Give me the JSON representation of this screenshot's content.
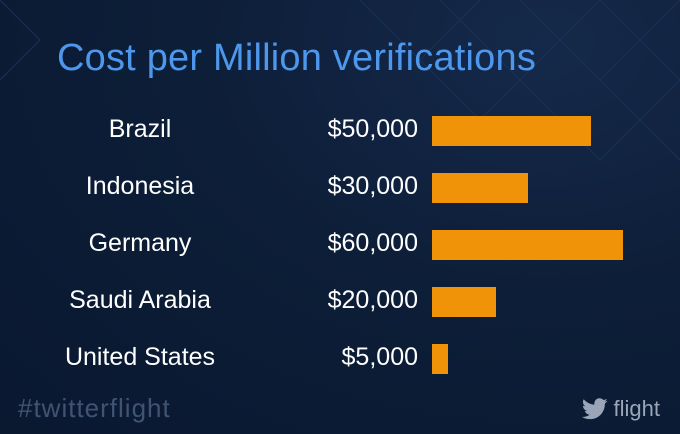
{
  "slide": {
    "hashtag": "#twitterflight",
    "brand": {
      "icon": "twitter-bird-icon",
      "name": "flight"
    }
  },
  "colors": {
    "background": "#0d1e38",
    "title": "#4d97ec",
    "bar": "#f09308",
    "text": "#ffffff"
  },
  "chart_data": {
    "type": "bar",
    "orientation": "horizontal",
    "title": "Cost per Million verifications",
    "categories": [
      "Brazil",
      "Indonesia",
      "Germany",
      "Saudi Arabia",
      "United States"
    ],
    "values": [
      50000,
      30000,
      60000,
      20000,
      5000
    ],
    "value_labels": [
      "$50,000",
      "$30,000",
      "$60,000",
      "$20,000",
      "$5,000"
    ],
    "xlabel": "",
    "ylabel": "",
    "xlim": [
      0,
      60000
    ],
    "grid": false,
    "legend": "none"
  }
}
